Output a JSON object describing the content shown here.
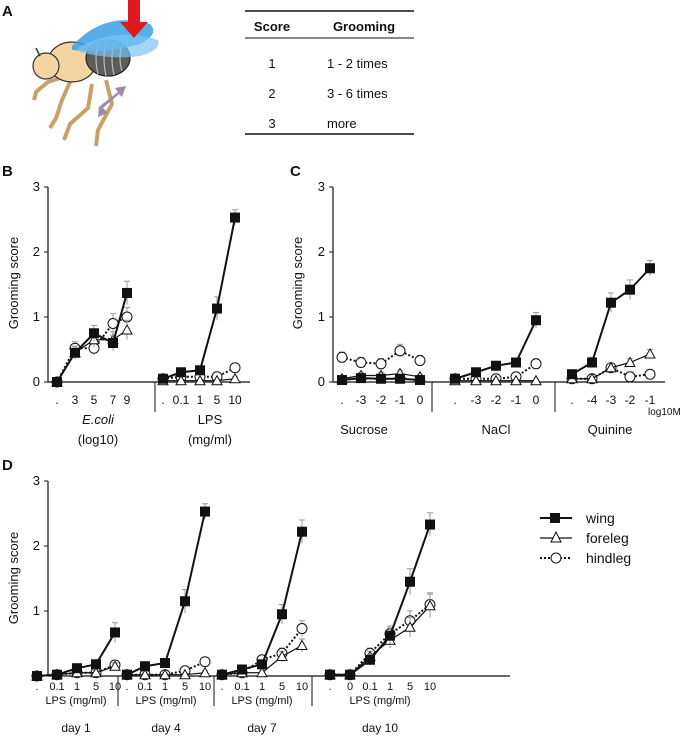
{
  "panels": {
    "a": "A",
    "b": "B",
    "c": "C",
    "d": "D"
  },
  "score_table": {
    "headers": [
      "Score",
      "Grooming"
    ],
    "rows": [
      [
        "1",
        "1 - 2 times"
      ],
      [
        "2",
        "3 - 6 times"
      ],
      [
        "3",
        "more"
      ]
    ]
  },
  "y_axis_label": "Grooming score",
  "y_ticks": [
    "0",
    "1",
    "2",
    "3"
  ],
  "legend": [
    {
      "key": "wing",
      "label": "wing"
    },
    {
      "key": "foreleg",
      "label": "foreleg"
    },
    {
      "key": "hindleg",
      "label": "hindleg"
    }
  ],
  "colors": {
    "ink": "#111111",
    "err": "#999999",
    "arrow": "#e0191f",
    "wing_blue": "#3aa0e6",
    "body_tan": "#f4d4a1",
    "leg_arrow": "#a08aa8"
  },
  "chart_data": [
    {
      "panel": "B",
      "type": "line",
      "ylabel": "Grooming score",
      "ylim": [
        0,
        3
      ],
      "groups": [
        {
          "name": "E.coli",
          "sublabel": "(log10)",
          "ticks": [
            ".",
            "3",
            "5",
            "7",
            "9"
          ],
          "series": [
            {
              "name": "wing",
              "values": [
                0,
                0.45,
                0.75,
                0.6,
                1.37
              ],
              "err": [
                0.05,
                0.1,
                0.12,
                0.12,
                0.18
              ]
            },
            {
              "name": "foreleg",
              "values": [
                0,
                0.45,
                0.65,
                0.65,
                0.8
              ],
              "err": [
                0.05,
                0.1,
                0.12,
                0.12,
                0.15
              ]
            },
            {
              "name": "hindleg",
              "values": [
                0,
                0.52,
                0.52,
                0.9,
                1.0
              ],
              "err": [
                0.05,
                0.1,
                0.1,
                0.15,
                0.15
              ]
            }
          ]
        },
        {
          "name": "LPS",
          "sublabel": "(mg/ml)",
          "ticks": [
            ".",
            "0.1",
            "1",
            "5",
            "10"
          ],
          "series": [
            {
              "name": "wing",
              "values": [
                0.05,
                0.15,
                0.18,
                1.13,
                2.53
              ],
              "err": [
                0.03,
                0.05,
                0.05,
                0.18,
                0.12
              ]
            },
            {
              "name": "foreleg",
              "values": [
                0.02,
                0.02,
                0.02,
                0.02,
                0.05
              ],
              "err": [
                0.02,
                0.02,
                0.02,
                0.02,
                0.03
              ]
            },
            {
              "name": "hindleg",
              "values": [
                0.05,
                0.08,
                0.08,
                0.08,
                0.22
              ],
              "err": [
                0.03,
                0.04,
                0.04,
                0.04,
                0.06
              ]
            }
          ]
        }
      ]
    },
    {
      "panel": "C",
      "type": "line",
      "ylabel": "Grooming score",
      "ylim": [
        0,
        3
      ],
      "unit_label": "log10M",
      "groups": [
        {
          "name": "Sucrose",
          "ticks": [
            ".",
            "-3",
            "-2",
            "-1",
            "0"
          ],
          "series": [
            {
              "name": "wing",
              "values": [
                0.03,
                0.06,
                0.05,
                0.05,
                0.03
              ],
              "err": [
                0.03,
                0.03,
                0.03,
                0.03,
                0.03
              ]
            },
            {
              "name": "foreleg",
              "values": [
                0.05,
                0.1,
                0.1,
                0.13,
                0.08
              ],
              "err": [
                0.04,
                0.05,
                0.05,
                0.05,
                0.04
              ]
            },
            {
              "name": "hindleg",
              "values": [
                0.38,
                0.3,
                0.28,
                0.48,
                0.33
              ],
              "err": [
                0.08,
                0.08,
                0.08,
                0.1,
                0.08
              ]
            }
          ]
        },
        {
          "name": "NaCl",
          "ticks": [
            ".",
            "-3",
            "-2",
            "-1",
            "0"
          ],
          "series": [
            {
              "name": "wing",
              "values": [
                0.05,
                0.15,
                0.25,
                0.3,
                0.95
              ],
              "err": [
                0.03,
                0.05,
                0.05,
                0.06,
                0.12
              ]
            },
            {
              "name": "foreleg",
              "values": [
                0.02,
                0.02,
                0.02,
                0.02,
                0.02
              ],
              "err": [
                0.02,
                0.02,
                0.02,
                0.02,
                0.02
              ]
            },
            {
              "name": "hindleg",
              "values": [
                0.05,
                0.05,
                0.05,
                0.08,
                0.28
              ],
              "err": [
                0.03,
                0.03,
                0.03,
                0.04,
                0.08
              ]
            }
          ]
        },
        {
          "name": "Quinine",
          "ticks": [
            ".",
            "-4",
            "-3",
            "-2",
            "-1"
          ],
          "series": [
            {
              "name": "wing",
              "values": [
                0.12,
                0.3,
                1.22,
                1.42,
                1.75
              ],
              "err": [
                0.05,
                0.08,
                0.15,
                0.15,
                0.12
              ]
            },
            {
              "name": "foreleg",
              "values": [
                0.05,
                0.05,
                0.22,
                0.3,
                0.43
              ],
              "err": [
                0.03,
                0.03,
                0.06,
                0.06,
                0.07
              ]
            },
            {
              "name": "hindleg",
              "values": [
                0.05,
                0.05,
                0.22,
                0.08,
                0.12
              ],
              "err": [
                0.03,
                0.03,
                0.06,
                0.04,
                0.04
              ]
            }
          ]
        }
      ]
    },
    {
      "panel": "D",
      "type": "line",
      "ylabel": "Grooming score",
      "ylim": [
        0,
        3
      ],
      "groups": [
        {
          "name": "day 1",
          "xlabel": "LPS (mg/ml)",
          "ticks": [
            ".",
            "0.1",
            "1",
            "5",
            "10"
          ],
          "series": [
            {
              "name": "wing",
              "values": [
                0,
                0.02,
                0.12,
                0.18,
                0.67
              ],
              "err": [
                0.02,
                0.02,
                0.04,
                0.05,
                0.15
              ]
            },
            {
              "name": "foreleg",
              "values": [
                0,
                0.02,
                0.05,
                0.05,
                0.15
              ],
              "err": [
                0.02,
                0.02,
                0.03,
                0.03,
                0.05
              ]
            },
            {
              "name": "hindleg",
              "values": [
                0,
                0.02,
                0.05,
                0.05,
                0.17
              ],
              "err": [
                0.02,
                0.02,
                0.03,
                0.03,
                0.05
              ]
            }
          ]
        },
        {
          "name": "day 4",
          "xlabel": "LPS (mg/ml)",
          "ticks": [
            ".",
            "0.1",
            "1",
            "5",
            "10"
          ],
          "series": [
            {
              "name": "wing",
              "values": [
                0.02,
                0.15,
                0.2,
                1.15,
                2.53
              ],
              "err": [
                0.03,
                0.05,
                0.05,
                0.18,
                0.12
              ]
            },
            {
              "name": "foreleg",
              "values": [
                0.02,
                0.02,
                0.02,
                0.02,
                0.05
              ],
              "err": [
                0.02,
                0.02,
                0.02,
                0.02,
                0.03
              ]
            },
            {
              "name": "hindleg",
              "values": [
                0.02,
                0.02,
                0.02,
                0.08,
                0.22
              ],
              "err": [
                0.02,
                0.02,
                0.02,
                0.04,
                0.06
              ]
            }
          ]
        },
        {
          "name": "day 7",
          "xlabel": "LPS (mg/ml)",
          "ticks": [
            ".",
            "0.1",
            "1",
            "5",
            "10"
          ],
          "series": [
            {
              "name": "wing",
              "values": [
                0.02,
                0.1,
                0.18,
                0.95,
                2.22
              ],
              "err": [
                0.03,
                0.04,
                0.05,
                0.15,
                0.18
              ]
            },
            {
              "name": "foreleg",
              "values": [
                0.02,
                0.05,
                0.05,
                0.3,
                0.47
              ],
              "err": [
                0.02,
                0.03,
                0.03,
                0.08,
                0.1
              ]
            },
            {
              "name": "hindleg",
              "values": [
                0.02,
                0.05,
                0.25,
                0.35,
                0.73
              ],
              "err": [
                0.02,
                0.03,
                0.06,
                0.08,
                0.12
              ]
            }
          ]
        },
        {
          "name": "day 10",
          "xlabel": "LPS (mg/ml)",
          "ticks": [
            ".",
            "0",
            "0.1",
            "1",
            "5",
            "10"
          ],
          "series": [
            {
              "name": "wing",
              "values": [
                0.02,
                0.02,
                0.25,
                0.62,
                1.45,
                2.33
              ],
              "err": [
                0.02,
                0.02,
                0.08,
                0.12,
                0.2,
                0.18
              ]
            },
            {
              "name": "foreleg",
              "values": [
                0.02,
                0.02,
                0.3,
                0.55,
                0.75,
                1.08
              ],
              "err": [
                0.02,
                0.02,
                0.08,
                0.12,
                0.15,
                0.18
              ]
            },
            {
              "name": "hindleg",
              "values": [
                0.02,
                0.02,
                0.35,
                0.65,
                0.85,
                1.1
              ],
              "err": [
                0.02,
                0.02,
                0.08,
                0.12,
                0.15,
                0.18
              ]
            }
          ]
        }
      ]
    }
  ]
}
